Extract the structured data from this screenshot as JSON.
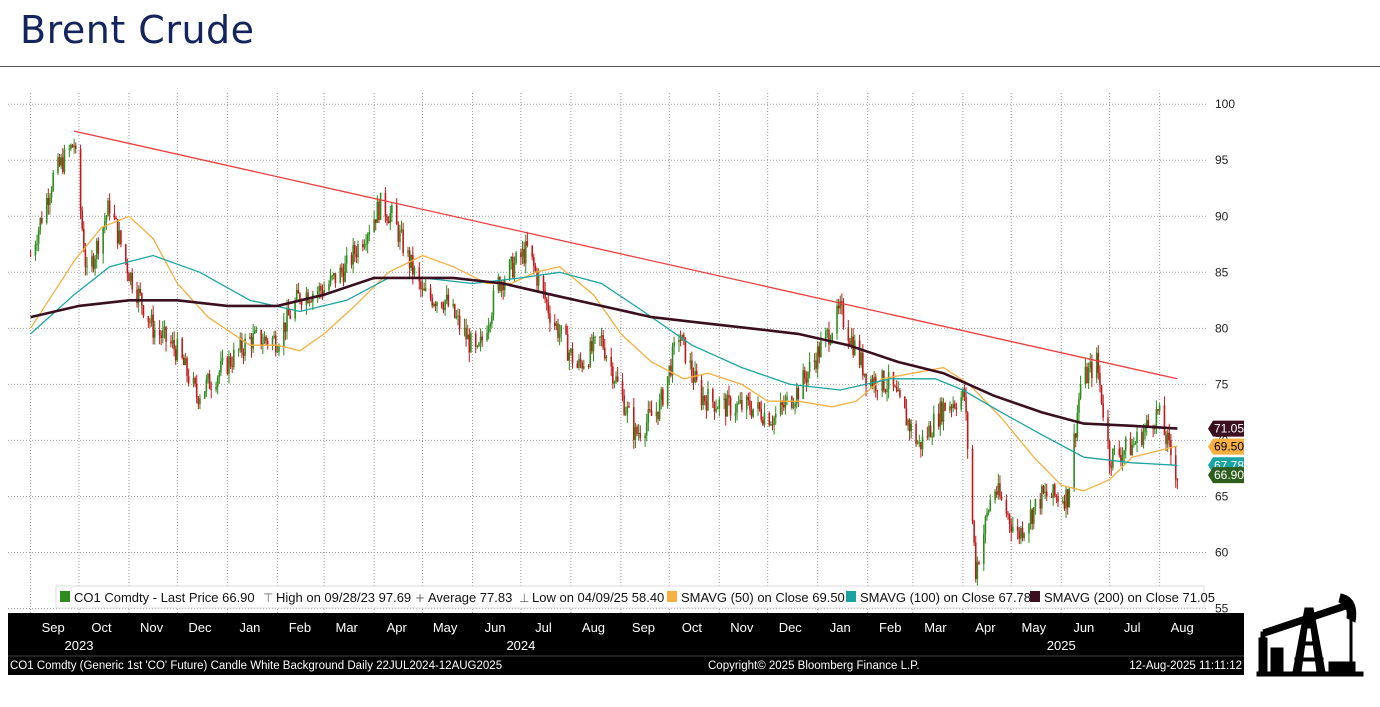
{
  "page": {
    "title": "Brent Crude"
  },
  "colors": {
    "trendline": "#ef3b3b",
    "sma50": "#f5b041",
    "sma100": "#1aa3a3",
    "sma200": "#3a1020",
    "candle_up": "#2e8b1e",
    "candle_down": "#c21a1a",
    "axis_bar": "#000000"
  },
  "chart_data": {
    "type": "line",
    "title": "Brent Crude",
    "ylim": [
      55,
      101
    ],
    "y_ticks": [
      55,
      60,
      65,
      70,
      75,
      80,
      85,
      90,
      95,
      100
    ],
    "grid": true,
    "month_labels": [
      "Sep",
      "Oct",
      "Nov",
      "Dec",
      "Jan",
      "Feb",
      "Mar",
      "Apr",
      "May",
      "Jun",
      "Jul",
      "Aug",
      "Sep",
      "Oct",
      "Nov",
      "Dec",
      "Jan",
      "Feb",
      "Mar",
      "Apr",
      "May",
      "Jun",
      "Jul",
      "Aug"
    ],
    "year_labels": [
      "2023",
      "2024",
      "2025"
    ],
    "series": [
      {
        "name": "CO1 Comdty - Last Price",
        "style": "candle",
        "x": [
          "2023-09-01",
          "2023-09-15",
          "2023-09-28",
          "2023-10-06",
          "2023-10-20",
          "2023-11-01",
          "2023-11-16",
          "2023-12-01",
          "2023-12-13",
          "2024-01-02",
          "2024-01-15",
          "2024-02-01",
          "2024-02-15",
          "2024-03-01",
          "2024-03-15",
          "2024-04-05",
          "2024-04-12",
          "2024-05-01",
          "2024-05-15",
          "2024-06-04",
          "2024-06-17",
          "2024-07-05",
          "2024-07-20",
          "2024-08-05",
          "2024-08-20",
          "2024-09-10",
          "2024-09-25",
          "2024-10-07",
          "2024-10-20",
          "2024-11-05",
          "2024-11-20",
          "2024-12-05",
          "2024-12-20",
          "2025-01-15",
          "2025-02-01",
          "2025-02-15",
          "2025-03-05",
          "2025-03-20",
          "2025-04-02",
          "2025-04-09",
          "2025-04-20",
          "2025-05-05",
          "2025-05-20",
          "2025-06-05",
          "2025-06-13",
          "2025-06-23",
          "2025-07-01",
          "2025-07-15",
          "2025-07-31",
          "2025-08-12"
        ],
        "values": [
          86.5,
          93.5,
          96.5,
          84.5,
          91.0,
          85.0,
          80.0,
          78.0,
          74.0,
          77.0,
          79.0,
          79.0,
          83.0,
          83.5,
          85.5,
          91.0,
          90.0,
          83.0,
          82.5,
          77.5,
          84.0,
          87.0,
          81.0,
          76.5,
          79.0,
          70.5,
          73.0,
          79.5,
          74.0,
          73.0,
          73.0,
          72.0,
          74.5,
          81.5,
          75.5,
          75.0,
          69.5,
          73.0,
          74.0,
          58.4,
          66.0,
          61.5,
          65.0,
          65.0,
          75.0,
          77.0,
          68.5,
          69.5,
          72.5,
          66.9
        ]
      },
      {
        "name": "SMAVG (50)",
        "style": "line",
        "x": [
          "2023-09-01",
          "2023-09-28",
          "2023-10-15",
          "2023-11-01",
          "2023-11-16",
          "2023-12-01",
          "2023-12-20",
          "2024-01-15",
          "2024-02-01",
          "2024-02-15",
          "2024-03-01",
          "2024-03-20",
          "2024-04-10",
          "2024-05-01",
          "2024-05-20",
          "2024-06-10",
          "2024-06-25",
          "2024-07-10",
          "2024-07-25",
          "2024-08-15",
          "2024-09-01",
          "2024-09-20",
          "2024-10-10",
          "2024-10-25",
          "2024-11-15",
          "2024-12-01",
          "2024-12-20",
          "2025-01-10",
          "2025-01-25",
          "2025-02-10",
          "2025-03-01",
          "2025-03-20",
          "2025-04-05",
          "2025-04-25",
          "2025-05-15",
          "2025-06-01",
          "2025-06-15",
          "2025-07-01",
          "2025-07-15",
          "2025-08-12"
        ],
        "values": [
          80.0,
          86.0,
          89.0,
          90.0,
          88.0,
          84.0,
          81.0,
          78.5,
          78.5,
          78.0,
          79.5,
          82.0,
          85.0,
          86.5,
          85.5,
          84.0,
          84.0,
          85.0,
          85.5,
          83.0,
          79.5,
          77.0,
          75.5,
          76.0,
          75.0,
          73.5,
          73.5,
          73.0,
          73.5,
          75.5,
          76.0,
          76.5,
          75.0,
          72.0,
          68.5,
          66.0,
          65.5,
          66.5,
          68.5,
          69.5
        ]
      },
      {
        "name": "SMAVG (100)",
        "style": "line",
        "x": [
          "2023-09-01",
          "2023-09-28",
          "2023-10-20",
          "2023-11-16",
          "2023-12-15",
          "2024-01-15",
          "2024-02-15",
          "2024-03-15",
          "2024-04-10",
          "2024-05-01",
          "2024-06-01",
          "2024-07-01",
          "2024-07-25",
          "2024-08-20",
          "2024-09-15",
          "2024-10-15",
          "2024-11-15",
          "2024-12-15",
          "2025-01-15",
          "2025-02-15",
          "2025-03-15",
          "2025-04-01",
          "2025-04-25",
          "2025-05-20",
          "2025-06-15",
          "2025-07-15",
          "2025-08-12"
        ],
        "values": [
          79.5,
          83.0,
          85.5,
          86.5,
          85.0,
          82.5,
          81.5,
          82.5,
          84.5,
          84.5,
          84.0,
          84.5,
          85.0,
          84.0,
          81.5,
          78.5,
          76.5,
          75.0,
          74.5,
          75.5,
          75.5,
          74.5,
          72.5,
          70.5,
          68.5,
          68.0,
          67.78
        ]
      },
      {
        "name": "SMAVG (200)",
        "style": "line",
        "x": [
          "2023-09-01",
          "2023-10-01",
          "2023-11-01",
          "2023-12-01",
          "2024-01-01",
          "2024-02-01",
          "2024-03-01",
          "2024-04-01",
          "2024-04-25",
          "2024-05-20",
          "2024-06-20",
          "2024-07-20",
          "2024-08-20",
          "2024-09-20",
          "2024-10-20",
          "2024-11-20",
          "2024-12-20",
          "2025-01-20",
          "2025-02-20",
          "2025-03-20",
          "2025-04-20",
          "2025-05-20",
          "2025-06-15",
          "2025-07-15",
          "2025-08-12"
        ],
        "values": [
          81.0,
          82.0,
          82.5,
          82.5,
          82.0,
          82.0,
          83.0,
          84.5,
          84.5,
          84.5,
          84.0,
          83.0,
          82.0,
          81.0,
          80.5,
          80.0,
          79.5,
          78.5,
          77.0,
          76.0,
          74.0,
          72.5,
          71.5,
          71.3,
          71.05
        ]
      }
    ],
    "trendline": {
      "x": [
        "2023-09-28",
        "2025-08-12"
      ],
      "values": [
        97.6,
        75.5
      ]
    },
    "last_values": [
      {
        "label": "71.05",
        "value": 71.05,
        "series": "SMAVG (200)"
      },
      {
        "label": "69.50",
        "value": 69.5,
        "series": "SMAVG (50)"
      },
      {
        "label": "67.78",
        "value": 67.78,
        "series": "SMAVG (100)"
      },
      {
        "label": "66.90",
        "value": 66.9,
        "series": "CO1 Comdty - Last Price"
      }
    ],
    "legend": {
      "placement": "bottom",
      "items": [
        {
          "label": "CO1 Comdty - Last Price 66.90",
          "marker": "candle"
        },
        {
          "label": "High on 09/28/23 97.69",
          "marker": "high"
        },
        {
          "label": "Average 77.83",
          "marker": "average"
        },
        {
          "label": "Low on 04/09/25 58.40",
          "marker": "low"
        },
        {
          "label": "SMAVG (50)  on Close 69.50",
          "marker": "sma50"
        },
        {
          "label": "SMAVG (100)  on Close 67.78",
          "marker": "sma100"
        },
        {
          "label": "SMAVG (200)  on Close 71.05",
          "marker": "sma200"
        }
      ]
    },
    "footer": {
      "left": "CO1 Comdty (Generic 1st 'CO' Future) Candle White Background  Daily 22JUL2024-12AUG2025",
      "center": "Copyright© 2025 Bloomberg Finance L.P.",
      "right": "12-Aug-2025 11:11:12"
    }
  },
  "icons": {
    "logo": "oil-pumpjack-icon"
  }
}
